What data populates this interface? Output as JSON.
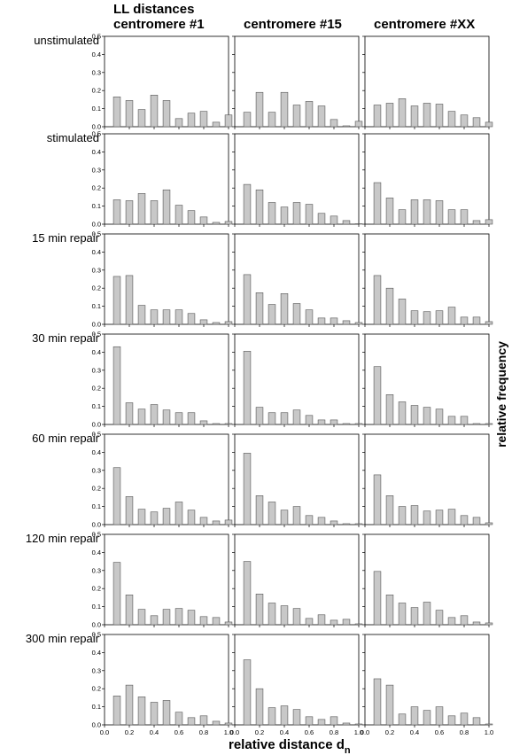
{
  "figure": {
    "header_line1": "LL distances",
    "column_titles": [
      "centromere #1",
      "centromere #15",
      "centromere #XX"
    ],
    "row_labels": [
      "unstimulated",
      "stimulated",
      "15 min repair",
      "30 min repair",
      "60 min repair",
      "120 min repair",
      "300 min repair"
    ],
    "xlabel_main": "relative distance d",
    "xlabel_sub": "n",
    "ylabel": "relative frequency",
    "bar_fill": "#c8c8c8",
    "bar_stroke": "#555555"
  },
  "chart_data": {
    "type": "bar",
    "layout": "grid 7 rows x 3 columns",
    "xlim": [
      0,
      1.0
    ],
    "ylim": [
      0,
      0.5
    ],
    "x_ticks": [
      "0.0",
      "0.2",
      "0.4",
      "0.6",
      "0.8",
      "1.0"
    ],
    "y_ticks": [
      "0.0",
      "0.1",
      "0.2",
      "0.3",
      "0.4",
      "0.5"
    ],
    "x": [
      0.1,
      0.2,
      0.3,
      0.4,
      0.5,
      0.6,
      0.7,
      0.8,
      0.9,
      1.0
    ],
    "panels": [
      {
        "row": "unstimulated",
        "column": "centromere #1",
        "values": [
          0.165,
          0.145,
          0.095,
          0.175,
          0.145,
          0.045,
          0.075,
          0.085,
          0.025,
          0.065
        ]
      },
      {
        "row": "unstimulated",
        "column": "centromere #15",
        "values": [
          0.08,
          0.19,
          0.08,
          0.19,
          0.12,
          0.14,
          0.115,
          0.04,
          0.005,
          0.03
        ]
      },
      {
        "row": "unstimulated",
        "column": "centromere #XX",
        "values": [
          0.12,
          0.13,
          0.155,
          0.115,
          0.13,
          0.125,
          0.085,
          0.065,
          0.05,
          0.025
        ]
      },
      {
        "row": "stimulated",
        "column": "centromere #1",
        "values": [
          0.135,
          0.13,
          0.17,
          0.13,
          0.19,
          0.105,
          0.075,
          0.04,
          0.01,
          0.015
        ]
      },
      {
        "row": "stimulated",
        "column": "centromere #15",
        "values": [
          0.22,
          0.19,
          0.12,
          0.095,
          0.12,
          0.11,
          0.06,
          0.045,
          0.02,
          0.0
        ]
      },
      {
        "row": "stimulated",
        "column": "centromere #XX",
        "values": [
          0.23,
          0.145,
          0.08,
          0.135,
          0.135,
          0.13,
          0.08,
          0.08,
          0.02,
          0.025
        ]
      },
      {
        "row": "15 min repair",
        "column": "centromere #1",
        "values": [
          0.265,
          0.27,
          0.105,
          0.08,
          0.08,
          0.08,
          0.06,
          0.025,
          0.01,
          0.015
        ]
      },
      {
        "row": "15 min repair",
        "column": "centromere #15",
        "values": [
          0.275,
          0.175,
          0.11,
          0.17,
          0.115,
          0.08,
          0.035,
          0.035,
          0.02,
          0.01
        ]
      },
      {
        "row": "15 min repair",
        "column": "centromere #XX",
        "values": [
          0.27,
          0.2,
          0.14,
          0.075,
          0.07,
          0.075,
          0.095,
          0.04,
          0.04,
          0.015
        ]
      },
      {
        "row": "30 min repair",
        "column": "centromere #1",
        "values": [
          0.43,
          0.12,
          0.085,
          0.11,
          0.08,
          0.065,
          0.065,
          0.02,
          0.005,
          0.005
        ]
      },
      {
        "row": "30 min repair",
        "column": "centromere #15",
        "values": [
          0.405,
          0.095,
          0.065,
          0.065,
          0.08,
          0.05,
          0.025,
          0.025,
          0.005,
          0.005
        ]
      },
      {
        "row": "30 min repair",
        "column": "centromere #XX",
        "values": [
          0.32,
          0.165,
          0.125,
          0.105,
          0.095,
          0.085,
          0.045,
          0.045,
          0.005,
          0.005
        ]
      },
      {
        "row": "60 min repair",
        "column": "centromere #1",
        "values": [
          0.315,
          0.155,
          0.085,
          0.07,
          0.09,
          0.125,
          0.08,
          0.04,
          0.02,
          0.025
        ]
      },
      {
        "row": "60 min repair",
        "column": "centromere #15",
        "values": [
          0.395,
          0.16,
          0.125,
          0.08,
          0.1,
          0.05,
          0.04,
          0.02,
          0.005,
          0.005
        ]
      },
      {
        "row": "60 min repair",
        "column": "centromere #XX",
        "values": [
          0.275,
          0.16,
          0.1,
          0.105,
          0.075,
          0.08,
          0.085,
          0.05,
          0.04,
          0.01
        ]
      },
      {
        "row": "120 min repair",
        "column": "centromere #1",
        "values": [
          0.345,
          0.165,
          0.085,
          0.05,
          0.085,
          0.09,
          0.08,
          0.045,
          0.04,
          0.015
        ]
      },
      {
        "row": "120 min repair",
        "column": "centromere #15",
        "values": [
          0.35,
          0.17,
          0.12,
          0.105,
          0.09,
          0.035,
          0.055,
          0.025,
          0.03,
          0.005
        ]
      },
      {
        "row": "120 min repair",
        "column": "centromere #XX",
        "values": [
          0.295,
          0.165,
          0.12,
          0.095,
          0.125,
          0.08,
          0.04,
          0.05,
          0.015,
          0.01
        ]
      },
      {
        "row": "300 min repair",
        "column": "centromere #1",
        "values": [
          0.16,
          0.22,
          0.155,
          0.125,
          0.135,
          0.07,
          0.04,
          0.05,
          0.02,
          0.01
        ]
      },
      {
        "row": "300 min repair",
        "column": "centromere #15",
        "values": [
          0.36,
          0.2,
          0.095,
          0.105,
          0.085,
          0.045,
          0.03,
          0.045,
          0.01,
          0.005
        ]
      },
      {
        "row": "300 min repair",
        "column": "centromere #XX",
        "values": [
          0.255,
          0.22,
          0.06,
          0.1,
          0.08,
          0.1,
          0.05,
          0.065,
          0.04,
          0.005
        ]
      }
    ]
  }
}
